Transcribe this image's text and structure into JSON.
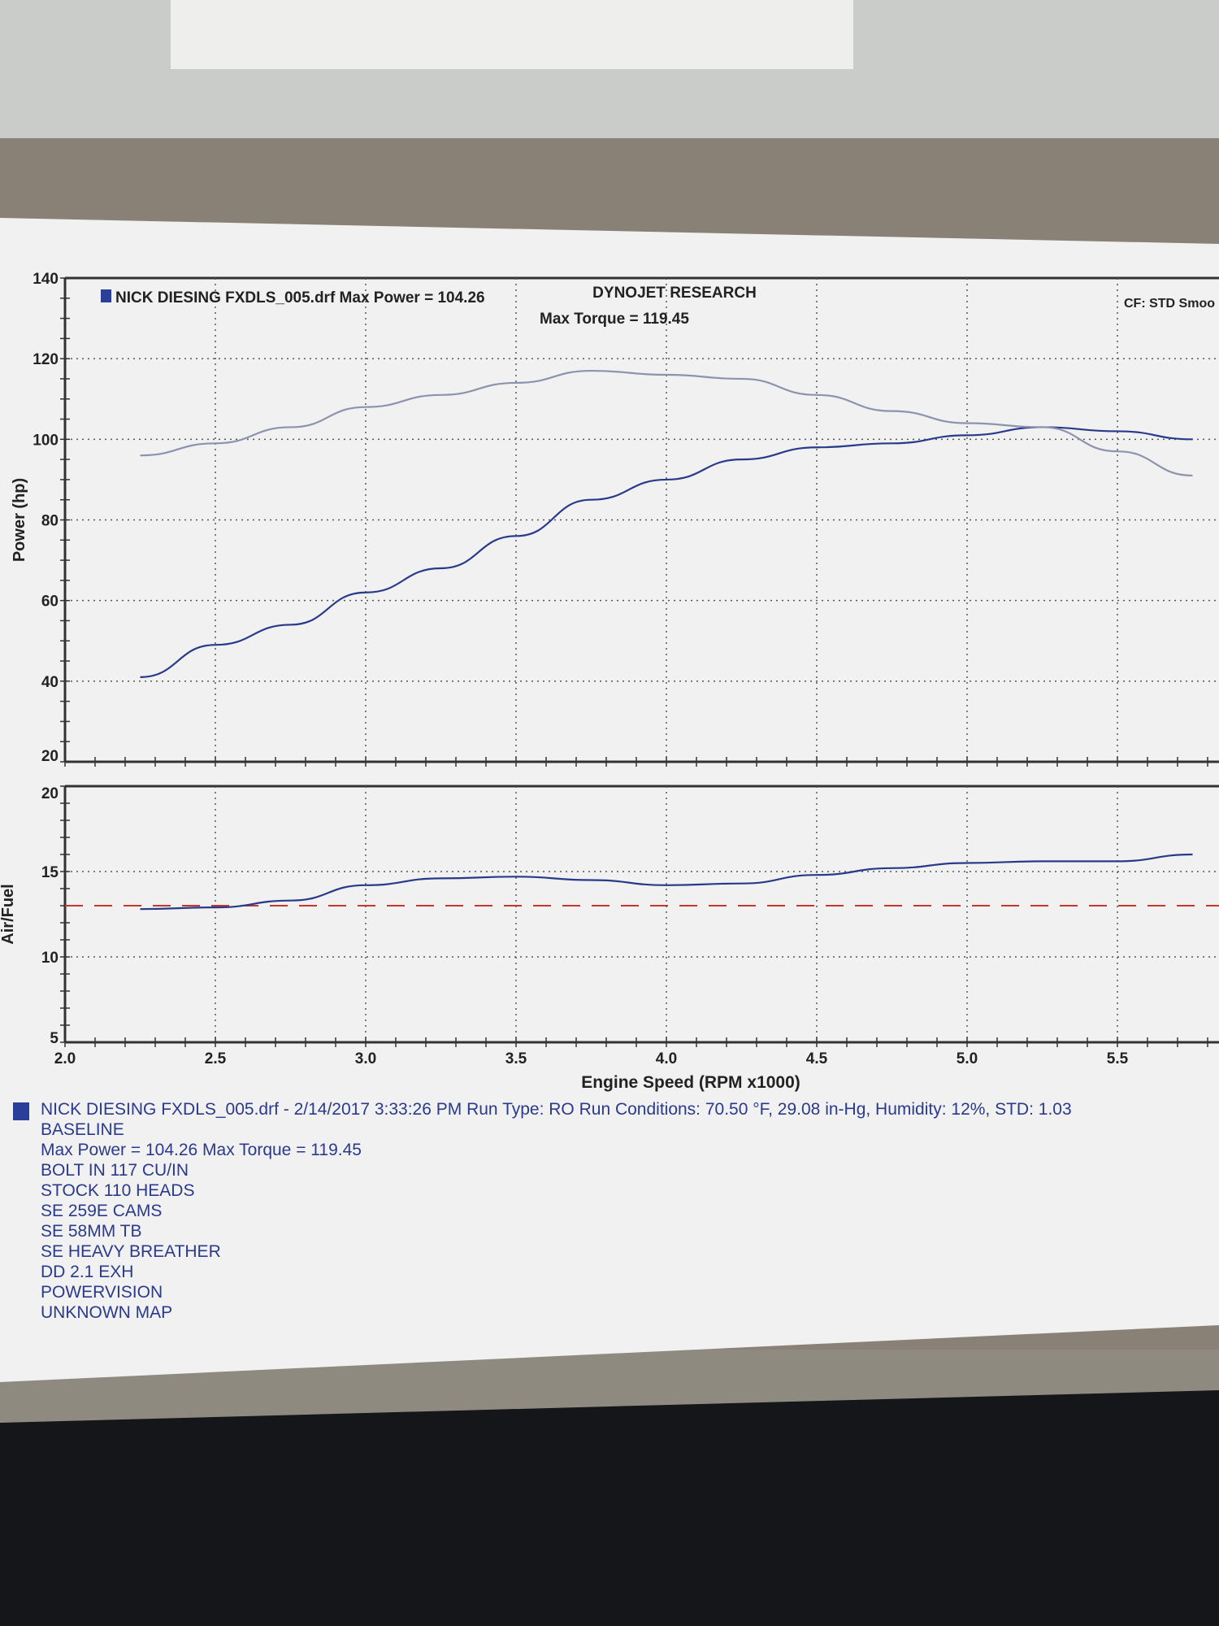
{
  "chart_data": [
    {
      "type": "line",
      "header": "DYNOJET RESEARCH",
      "header_right": "CF: STD  Smoo",
      "legend_entry": "NICK DIESING FXDLS_005.drf Max Power = 104.26",
      "legend_entry_2": "Max Torque = 119.45",
      "ylabel": "Power (hp)",
      "ylim": [
        20,
        140
      ],
      "yticks": [
        "140",
        "120",
        "100",
        "80",
        "60",
        "40",
        "20"
      ],
      "xlim": [
        2.0,
        5.85
      ],
      "grid": true,
      "x": [
        2.25,
        2.5,
        2.75,
        3.0,
        3.25,
        3.5,
        3.75,
        4.0,
        4.25,
        4.5,
        4.75,
        5.0,
        5.25,
        5.5,
        5.75
      ],
      "series": [
        {
          "values": [
            41,
            49,
            54,
            62,
            68,
            76,
            85,
            90,
            95,
            98,
            99,
            101,
            103,
            102,
            100
          ],
          "color": "#2a3a8a"
        },
        {
          "values": [
            96,
            99,
            103,
            108,
            111,
            114,
            117,
            116,
            115,
            111,
            107,
            104,
            103,
            97,
            91
          ],
          "color": "#8d93ad"
        }
      ]
    },
    {
      "type": "line",
      "ylabel": "Air/Fuel",
      "xlabel": "Engine Speed (RPM x1000)",
      "ylim": [
        5,
        20
      ],
      "yticks": [
        "20",
        "15",
        "10",
        "5"
      ],
      "xlim": [
        2.0,
        5.85
      ],
      "xticks": [
        "2.0",
        "2.5",
        "3.0",
        "3.5",
        "4.0",
        "4.5",
        "5.0",
        "5.5"
      ],
      "grid": true,
      "x": [
        2.25,
        2.5,
        2.75,
        3.0,
        3.25,
        3.5,
        3.75,
        4.0,
        4.25,
        4.5,
        4.75,
        5.0,
        5.25,
        5.5,
        5.75
      ],
      "series": [
        {
          "values": [
            12.8,
            12.9,
            13.3,
            14.2,
            14.6,
            14.7,
            14.5,
            14.2,
            14.3,
            14.8,
            15.2,
            15.5,
            15.6,
            15.6,
            16.0
          ],
          "color": "#2a3a8a"
        }
      ],
      "reference_line": {
        "value": 13.0,
        "color": "#c0392b",
        "style": "dashed"
      }
    }
  ],
  "run_info": {
    "line1": "NICK DIESING FXDLS_005.drf - 2/14/2017 3:33:26 PM  Run Type: RO  Run Conditions: 70.50 °F, 29.08 in-Hg,  Humidity:  12%, STD: 1.03",
    "notes": [
      "BASELINE",
      "Max Power = 104.26  Max Torque = 119.45",
      "BOLT IN 117 CU/IN",
      "STOCK 110 HEADS",
      "SE 259E CAMS",
      "SE 58MM TB",
      "SE HEAVY BREATHER",
      "DD 2.1 EXH",
      "POWERVISION",
      "UNKNOWN MAP"
    ]
  }
}
